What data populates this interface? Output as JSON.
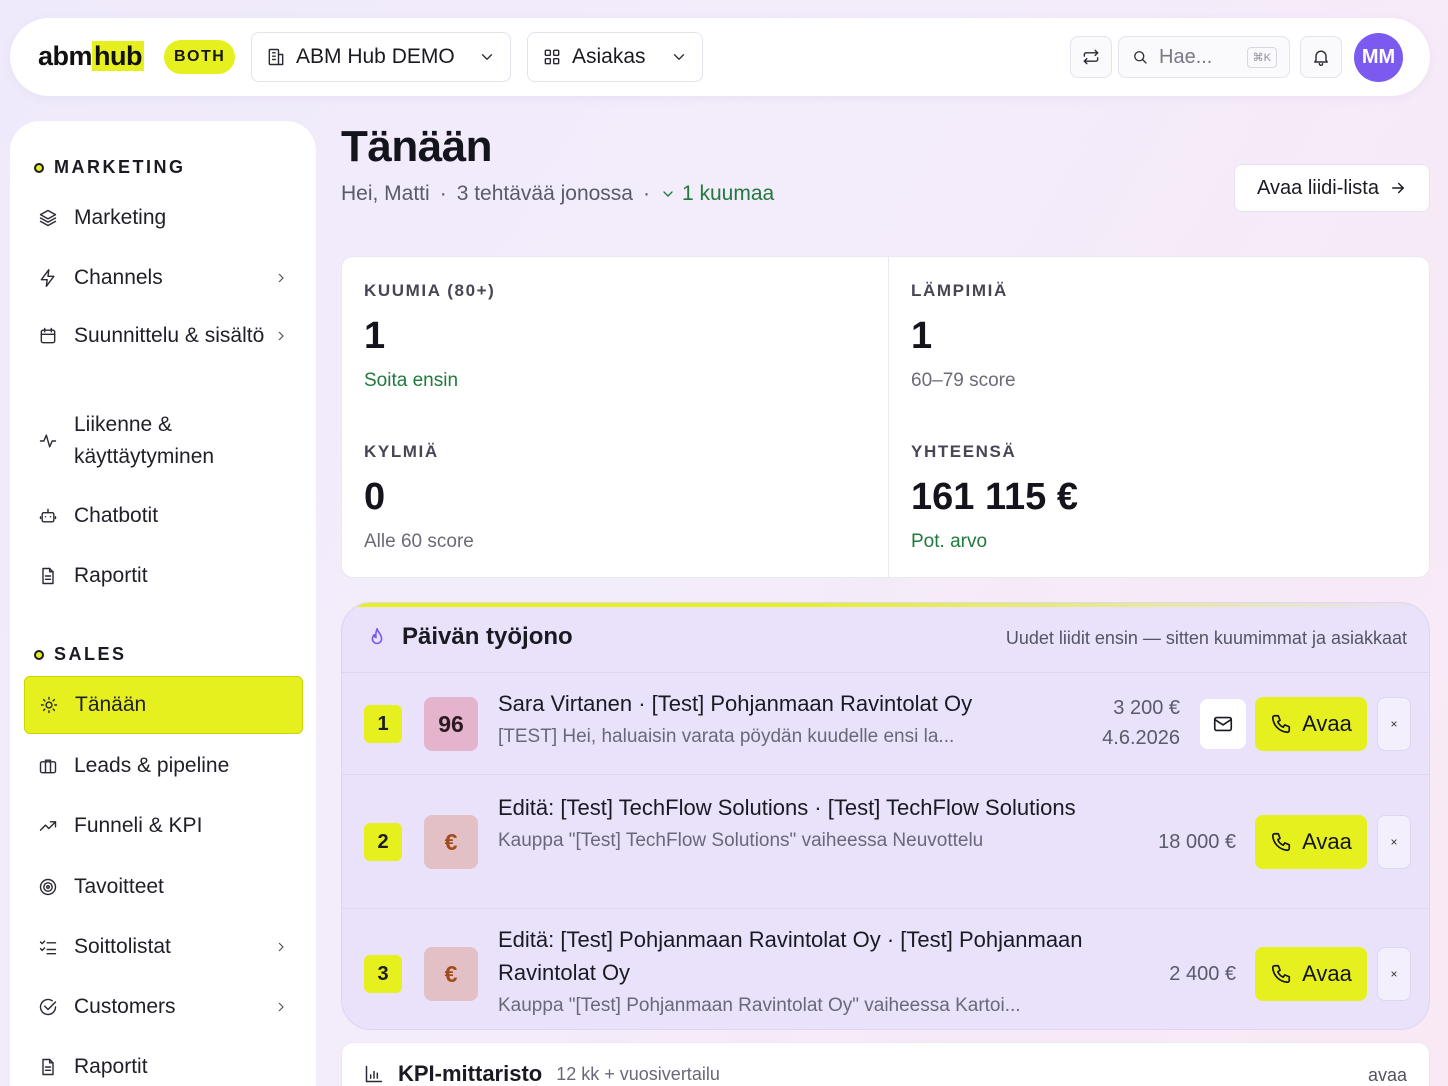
{
  "topbar": {
    "logo_a": "abm",
    "logo_b": "hub",
    "badge": "BOTH",
    "company": "ABM Hub DEMO",
    "role": "Asiakas",
    "search_placeholder": "Hae...",
    "search_shortcut": "⌘K",
    "avatar": "MM",
    "icons": {
      "swap": "swap-icon",
      "search": "search-icon",
      "bell": "bell-icon",
      "building": "building-icon",
      "grid": "grid-icon"
    }
  },
  "sidebar": {
    "marketing_title": "MARKETING",
    "sales_title": "SALES",
    "marketing": [
      {
        "label": "Marketing",
        "icon": "layers-icon",
        "chevron": false
      },
      {
        "label": "Channels",
        "icon": "zap-icon",
        "chevron": true
      },
      {
        "label": "Suunnittelu & sisältö",
        "icon": "calendar-icon",
        "chevron": true
      },
      {
        "label": "Liikenne & käyttäytyminen",
        "icon": "activity-icon",
        "chevron": false
      },
      {
        "label": "Chatbotit",
        "icon": "bot-icon",
        "chevron": false
      },
      {
        "label": "Raportit",
        "icon": "file-icon",
        "chevron": false
      }
    ],
    "sales": [
      {
        "label": "Tänään",
        "icon": "sun-icon",
        "chevron": false,
        "active": true
      },
      {
        "label": "Leads & pipeline",
        "icon": "briefcase-icon",
        "chevron": false
      },
      {
        "label": "Funneli & KPI",
        "icon": "trend-icon",
        "chevron": false
      },
      {
        "label": "Tavoitteet",
        "icon": "target-icon",
        "chevron": false
      },
      {
        "label": "Soittolistat",
        "icon": "list-check-icon",
        "chevron": true
      },
      {
        "label": "Customers",
        "icon": "check-circle-icon",
        "chevron": true
      },
      {
        "label": "Raportit",
        "icon": "file-icon",
        "chevron": false
      }
    ]
  },
  "header": {
    "title": "Tänään",
    "greeting": "Hei, Matti",
    "tasks": "3 tehtävää jonossa",
    "hot": "1 kuumaa",
    "open_leads": "Avaa liidi-lista"
  },
  "stats": [
    {
      "label": "KUUMIA (80+)",
      "value": "1",
      "note": "Soita ensin",
      "note_green": true
    },
    {
      "label": "LÄMPIMIÄ",
      "value": "1",
      "note": "60–79 score",
      "note_green": false
    },
    {
      "label": "KYLMIÄ",
      "value": "0",
      "note": "Alle 60 score",
      "note_green": false
    },
    {
      "label": "YHTEENSÄ",
      "value": "161 115 €",
      "note": "Pot. arvo",
      "note_green": true
    }
  ],
  "queue": {
    "title": "Päivän työjono",
    "hint": "Uudet liidit ensin — sitten kuumimmat ja asiakkaat",
    "open_label": "Avaa",
    "close_label": "×",
    "rows": [
      {
        "rank": "1",
        "score": "96",
        "title": "Sara Virtanen · [Test] Pohjanmaan Ravintolat Oy",
        "subtitle": "[TEST] Hei, haluaisin varata pöydän kuudelle ensi la...",
        "amount": "3 200 €",
        "date": "4.6.2026"
      },
      {
        "rank": "2",
        "score": "€",
        "title": "Editä: [Test] TechFlow Solutions · [Test] TechFlow Solutions",
        "subtitle": "Kauppa \"[Test] TechFlow Solutions\" vaiheessa Neuvottelu",
        "amount": "18 000 €",
        "date": ""
      },
      {
        "rank": "3",
        "score": "€",
        "title": "Editä: [Test] Pohjanmaan Ravintolat Oy · [Test] Pohjanmaan Ravintolat Oy",
        "subtitle": "Kauppa \"[Test] Pohjanmaan Ravintolat Oy\" vaiheessa Kartoi...",
        "amount": "2 400 €",
        "date": ""
      }
    ]
  },
  "kpi": {
    "title": "KPI-mittaristo",
    "subtitle": "12 kk + vuosivertailu",
    "open": "avaa"
  },
  "colors": {
    "accent": "#e6f01e",
    "avatar": "#7b5af0",
    "green": "#1f7a3b",
    "queue_bg": "#e9e2fa"
  }
}
